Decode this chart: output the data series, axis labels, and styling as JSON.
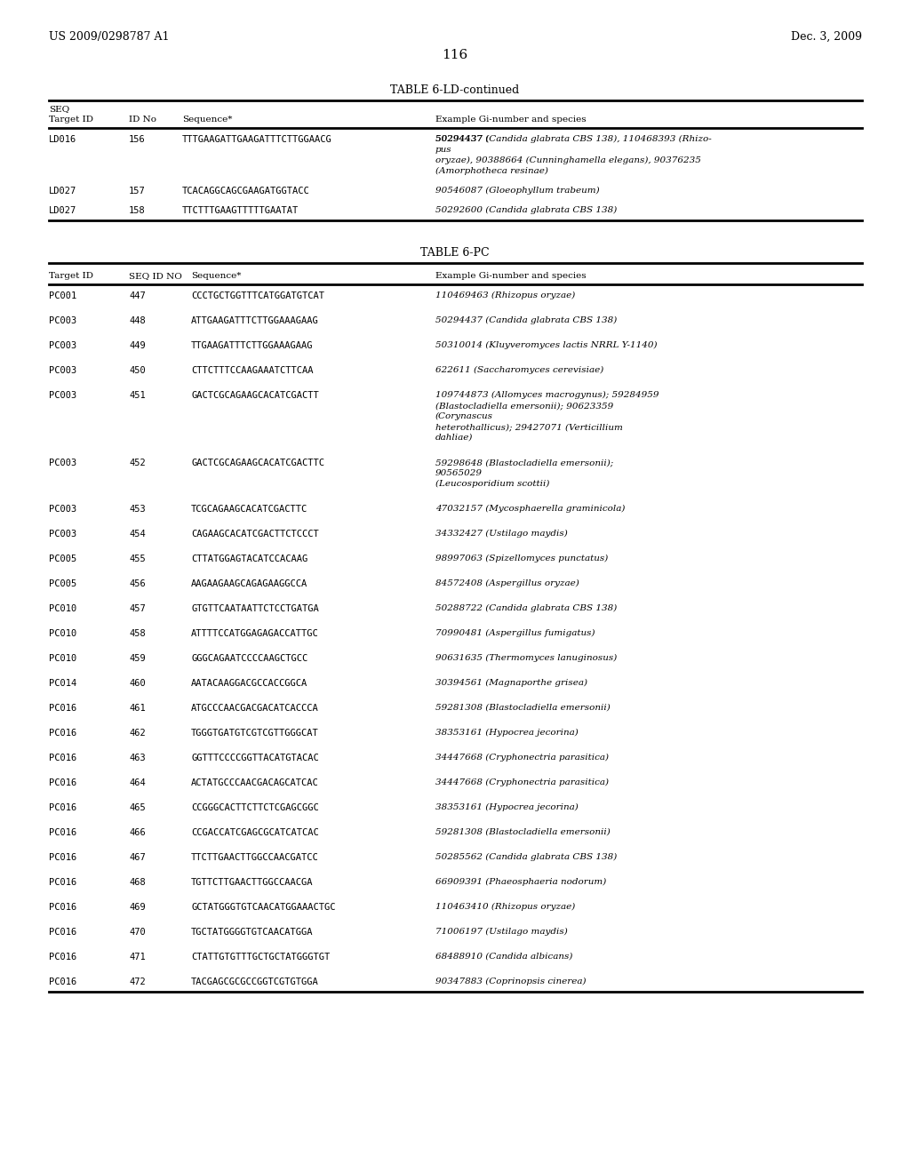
{
  "page_header_left": "US 2009/0298787 A1",
  "page_header_right": "Dec. 3, 2009",
  "page_number": "116",
  "table1_title": "TABLE 6-LD-continued",
  "table1_headers": [
    "Target ID",
    "SEQ\nID No",
    "Sequence*",
    "Example Gi-number and species"
  ],
  "table1_rows": [
    [
      "LD016",
      "156",
      "TTTGAAGATTGAAGATTTCTTGGAACG",
      "50294437 (Candida glabrata CBS 138), 110468393 (Rhizo-\npus\noryzae), 90388664 (Cunninghamella elegans), 90376235\n(Amorphotheca resinae)"
    ],
    [
      "LD027",
      "157",
      "TCACAGGCAGCGAAGATGGTACC",
      "90546087 (Gloeophyllum trabeum)"
    ],
    [
      "LD027",
      "158",
      "TTCTTTGAAGTTTTTGAATAT",
      "50292600 (Candida glabrata CBS 138)"
    ]
  ],
  "table2_title": "TABLE 6-PC",
  "table2_headers": [
    "Target ID",
    "SEQ ID NO",
    "Sequence*",
    "Example Gi-number and species"
  ],
  "table2_rows": [
    [
      "PC001",
      "447",
      "CCCTGCTGGTTTCATGGATGTCAT",
      "110469463 (Rhizopus oryzae)"
    ],
    [
      "PC003",
      "448",
      "ATTGAAGATTTCTTGGAAAGAAG",
      "50294437 (Candida glabrata CBS 138)"
    ],
    [
      "PC003",
      "449",
      "TTGAAGATTTCTTGGAAAGAAG",
      "50310014 (Kluyveromyces lactis NRRL Y-1140)"
    ],
    [
      "PC003",
      "450",
      "CTTCTTTCCAAGAAATCTTCAA",
      "622611 (Saccharomyces cerevisiae)"
    ],
    [
      "PC003",
      "451",
      "GACTCGCAGAAGCACATCGACTT",
      "109744873 (Allomyces macrogynus); 59284959\n(Blastocladiella emersonii); 90623359\n(Corynascus\nheterothallicus); 29427071 (Verticillium\ndahliae)"
    ],
    [
      "PC003",
      "452",
      "GACTCGCAGAAGCACATCGACTTC",
      "59298648 (Blastocladiella emersonii);\n90565029\n(Leucosporidium scottii)"
    ],
    [
      "PC003",
      "453",
      "TCGCAGAAGCACATCGACTTC",
      "47032157 (Mycosphaerella graminicola)"
    ],
    [
      "PC003",
      "454",
      "CAGAAGCACATCGACTTCTCCCT",
      "34332427 (Ustilago maydis)"
    ],
    [
      "PC005",
      "455",
      "CTTATGGAGTACATCCACAAG",
      "98997063 (Spizellomyces punctatus)"
    ],
    [
      "PC005",
      "456",
      "AAGAAGAAGCAGAGAAGGCCA",
      "84572408 (Aspergillus oryzae)"
    ],
    [
      "PC010",
      "457",
      "GTGTTCAATAATTCTCCTGATGA",
      "50288722 (Candida glabrata CBS 138)"
    ],
    [
      "PC010",
      "458",
      "ATTTTCCATGGAGAGACCATTGC",
      "70990481 (Aspergillus fumigatus)"
    ],
    [
      "PC010",
      "459",
      "GGGCAGAATCCCCAAGCTGCC",
      "90631635 (Thermomyces lanuginosus)"
    ],
    [
      "PC014",
      "460",
      "AATACAAGGACGCCACCGGCA",
      "30394561 (Magnaporthe grisea)"
    ],
    [
      "PC016",
      "461",
      "ATGCCCAACGACGACATCACCCA",
      "59281308 (Blastocladiella emersonii)"
    ],
    [
      "PC016",
      "462",
      "TGGGTGATGTCGTCGTTGGGCAT",
      "38353161 (Hypocrea jecorina)"
    ],
    [
      "PC016",
      "463",
      "GGTTTCCCCGGTTACATGTACAC",
      "34447668 (Cryphonectria parasitica)"
    ],
    [
      "PC016",
      "464",
      "ACTATGCCCAACGACAGCATCAC",
      "34447668 (Cryphonectria parasitica)"
    ],
    [
      "PC016",
      "465",
      "CCGGGCACTTCTTCTCGAGCGGC",
      "38353161 (Hypocrea jecorina)"
    ],
    [
      "PC016",
      "466",
      "CCGACCATCGAGCGCATCATCAC",
      "59281308 (Blastocladiella emersonii)"
    ],
    [
      "PC016",
      "467",
      "TTCTTGAACTTGGCCAACGATCC",
      "50285562 (Candida glabrata CBS 138)"
    ],
    [
      "PC016",
      "468",
      "TGTTCTTGAACTTGGCCAACGA",
      "66909391 (Phaeosphaeria nodorum)"
    ],
    [
      "PC016",
      "469",
      "GCTATGGGTGTCAACATGGAAACTGC",
      "110463410 (Rhizopus oryzae)"
    ],
    [
      "PC016",
      "470",
      "TGCTATGGGGTGTCAACATGGA",
      "71006197 (Ustilago maydis)"
    ],
    [
      "PC016",
      "471",
      "CTATTGTGTTTGCTGCTATGGGTGT",
      "68488910 (Candida albicans)"
    ],
    [
      "PC016",
      "472",
      "TACGAGCGCGCCGGTCGTGTGGA",
      "90347883 (Coprinopsis cinerea)"
    ]
  ],
  "bg_color": "#ffffff",
  "text_color": "#000000",
  "font_size": 7.5,
  "header_font_size": 7.5
}
